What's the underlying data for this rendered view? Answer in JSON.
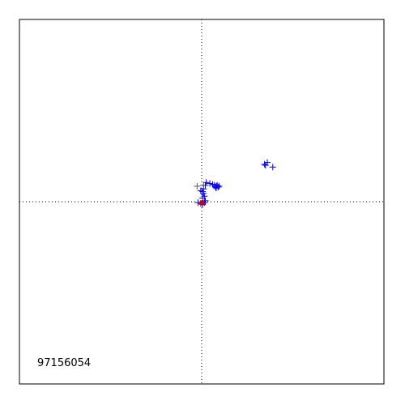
{
  "chart_data": {
    "type": "scatter",
    "title": "",
    "xlabel": "",
    "ylabel": "",
    "xlim": [
      -1,
      1
    ],
    "ylim": [
      -1,
      1
    ],
    "grid": false,
    "crosshair": {
      "x": 0,
      "y": 0,
      "style": "dotted"
    },
    "annotation": "97156054",
    "series": [
      {
        "marker": "plus",
        "color": "#0000ff",
        "points": [
          [
            0.35,
            0.2
          ],
          [
            0.36,
            0.215
          ],
          [
            0.39,
            0.19
          ],
          [
            0.345,
            0.205
          ],
          [
            0.025,
            0.105
          ],
          [
            0.045,
            0.1
          ],
          [
            0.06,
            0.095
          ],
          [
            0.07,
            0.09
          ],
          [
            0.08,
            0.085
          ],
          [
            0.085,
            0.09
          ],
          [
            0.09,
            0.08
          ],
          [
            0.08,
            0.075
          ],
          [
            0.095,
            0.085
          ],
          [
            0.075,
            0.08
          ],
          [
            0.02,
            0.09
          ],
          [
            0.01,
            0.07
          ],
          [
            0.005,
            0.055
          ],
          [
            -0.005,
            0.06
          ],
          [
            0.01,
            0.045
          ],
          [
            0.015,
            0.03
          ],
          [
            0.005,
            0.02
          ],
          [
            0.02,
            0.005
          ],
          [
            0.015,
            -0.005
          ],
          [
            -0.005,
            -0.01
          ],
          [
            -0.02,
            -0.005
          ],
          [
            0.005,
            -0.015
          ]
        ]
      },
      {
        "marker": "plus",
        "color": "#555555",
        "points": [
          [
            -0.025,
            0.085
          ],
          [
            0.01,
            0.09
          ]
        ]
      },
      {
        "marker": "dot",
        "color": "#cc0000",
        "points": [
          [
            0.0,
            -0.005
          ],
          [
            0.003,
            -0.008
          ]
        ]
      }
    ]
  }
}
